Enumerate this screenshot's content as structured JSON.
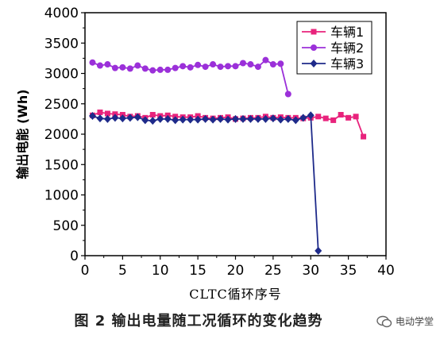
{
  "figure": {
    "caption": "图 2  输出电量随工况循环的变化趋势"
  },
  "watermark": {
    "text": "电动学堂",
    "icon": "chat-bubble-icon"
  },
  "chart_data": {
    "type": "line",
    "xlabel": "CLTC循环序号",
    "ylabel": "输出电能 (Wh)",
    "xlim": [
      0,
      40
    ],
    "ylim": [
      0,
      4000
    ],
    "xticks": [
      0,
      5,
      10,
      15,
      20,
      25,
      30,
      35,
      40
    ],
    "yticks": [
      0,
      500,
      1000,
      1500,
      2000,
      2500,
      3000,
      3500,
      4000
    ],
    "grid": false,
    "legend_position": "top-right",
    "series": [
      {
        "name": "车辆1",
        "color": "#e8237c",
        "marker": "square",
        "x": [
          1,
          2,
          3,
          4,
          5,
          6,
          7,
          8,
          9,
          10,
          11,
          12,
          13,
          14,
          15,
          16,
          17,
          18,
          19,
          20,
          21,
          22,
          23,
          24,
          25,
          26,
          27,
          28,
          29,
          30,
          31,
          32,
          33,
          34,
          35,
          36,
          37
        ],
        "values": [
          2310,
          2360,
          2340,
          2330,
          2320,
          2290,
          2300,
          2270,
          2320,
          2300,
          2310,
          2290,
          2280,
          2280,
          2300,
          2270,
          2260,
          2270,
          2280,
          2250,
          2260,
          2270,
          2270,
          2290,
          2270,
          2280,
          2270,
          2270,
          2260,
          2270,
          2290,
          2260,
          2230,
          2320,
          2270,
          2290,
          1960
        ]
      },
      {
        "name": "车辆2",
        "color": "#9b30d9",
        "marker": "circle",
        "x": [
          1,
          2,
          3,
          4,
          5,
          6,
          7,
          8,
          9,
          10,
          11,
          12,
          13,
          14,
          15,
          16,
          17,
          18,
          19,
          20,
          21,
          22,
          23,
          24,
          25,
          26,
          27
        ],
        "values": [
          3180,
          3130,
          3150,
          3090,
          3100,
          3080,
          3130,
          3080,
          3050,
          3060,
          3060,
          3090,
          3120,
          3100,
          3140,
          3110,
          3150,
          3110,
          3120,
          3120,
          3170,
          3150,
          3110,
          3220,
          3150,
          3160,
          2660
        ]
      },
      {
        "name": "车辆3",
        "color": "#1e2a8a",
        "marker": "diamond",
        "x": [
          1,
          2,
          3,
          4,
          5,
          6,
          7,
          8,
          9,
          10,
          11,
          12,
          13,
          14,
          15,
          16,
          17,
          18,
          19,
          20,
          21,
          22,
          23,
          24,
          25,
          26,
          27,
          28,
          29,
          30,
          31
        ],
        "values": [
          2300,
          2260,
          2250,
          2270,
          2260,
          2270,
          2280,
          2230,
          2220,
          2250,
          2250,
          2230,
          2240,
          2240,
          2240,
          2250,
          2240,
          2250,
          2240,
          2250,
          2250,
          2250,
          2250,
          2250,
          2260,
          2240,
          2250,
          2230,
          2270,
          2310,
          80
        ]
      }
    ]
  }
}
